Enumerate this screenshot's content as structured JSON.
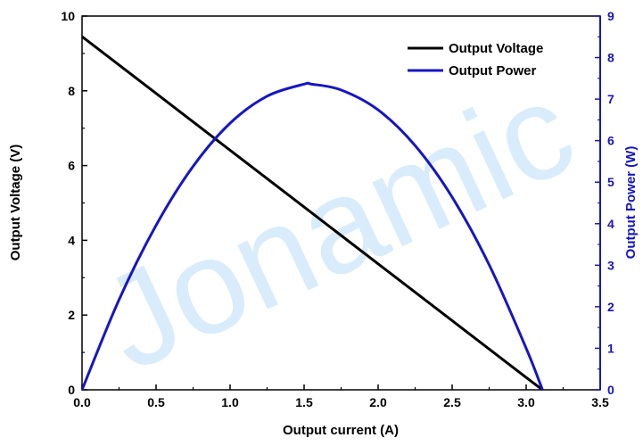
{
  "watermark": "Jonamic",
  "chart_data": {
    "type": "line",
    "xlabel": "Output current (A)",
    "ylabel_left": "Output Voltage (V)",
    "ylabel_right": "Output Power (W)",
    "xlim": [
      0.0,
      3.5
    ],
    "ylim_left": [
      0,
      10
    ],
    "ylim_right": [
      0,
      9
    ],
    "xticks": [
      "0.0",
      "0.5",
      "1.0",
      "1.5",
      "2.0",
      "2.5",
      "3.0",
      "3.5"
    ],
    "yticks_left": [
      "0",
      "2",
      "4",
      "6",
      "8",
      "10"
    ],
    "yticks_right": [
      "0",
      "1",
      "2",
      "3",
      "4",
      "5",
      "6",
      "7",
      "8",
      "9"
    ],
    "grid": false,
    "legend_position": "top-right",
    "colors": {
      "voltage": "#000000",
      "power": "#1515c8",
      "right_axis": "#1515c8",
      "watermark": "#d9ecfb"
    },
    "series": [
      {
        "name": "Output Voltage",
        "axis": "left",
        "x": [
          0.0,
          0.5,
          1.0,
          1.5,
          2.0,
          2.5,
          3.0,
          3.11
        ],
        "y": [
          9.45,
          7.93,
          6.41,
          4.89,
          3.37,
          1.85,
          0.33,
          0.0
        ]
      },
      {
        "name": "Output Power",
        "axis": "right",
        "x": [
          0.0,
          0.25,
          0.5,
          0.75,
          1.0,
          1.25,
          1.5,
          1.55,
          1.75,
          2.0,
          2.25,
          2.5,
          2.75,
          3.0,
          3.11
        ],
        "y": [
          0.0,
          2.17,
          3.96,
          5.38,
          6.42,
          7.07,
          7.36,
          7.36,
          7.22,
          6.74,
          5.88,
          4.64,
          3.01,
          1.0,
          0.0
        ]
      }
    ]
  }
}
